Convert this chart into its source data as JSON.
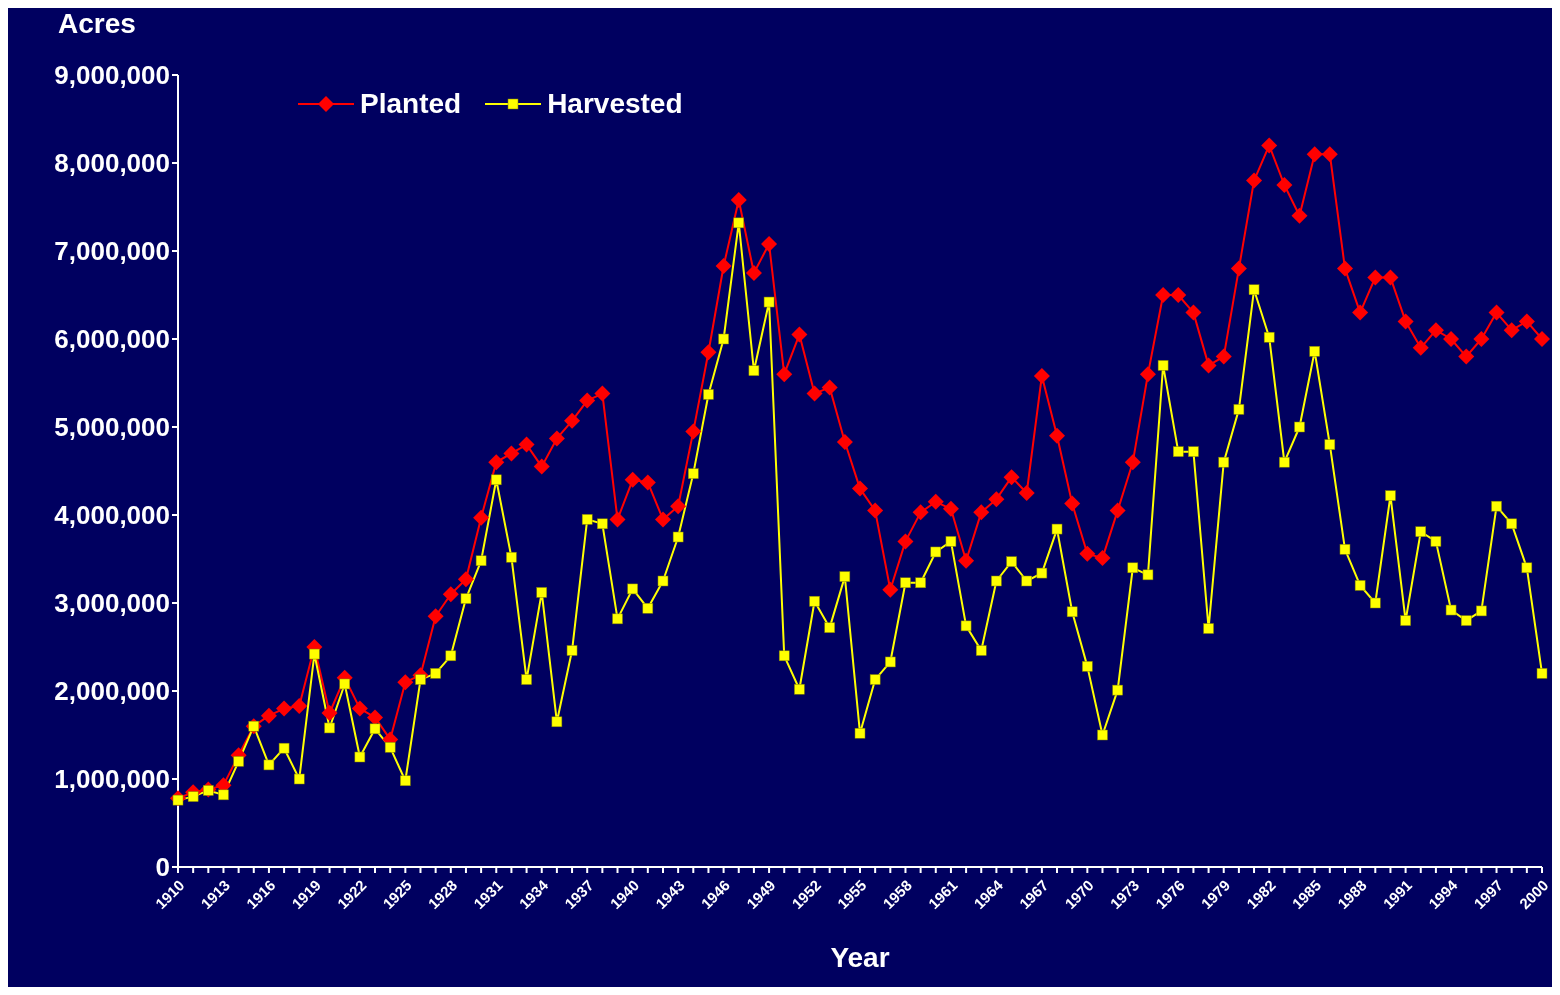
{
  "chart_data": {
    "type": "line",
    "ylabel": "Acres",
    "xlabel": "Year",
    "categories": [
      "1910",
      null,
      null,
      "1913",
      null,
      null,
      "1916",
      null,
      null,
      "1919",
      null,
      null,
      "1922",
      null,
      null,
      "1925",
      null,
      null,
      "1928",
      null,
      null,
      "1931",
      null,
      null,
      "1934",
      null,
      null,
      "1937",
      null,
      null,
      "1940",
      null,
      null,
      "1943",
      null,
      null,
      "1946",
      null,
      null,
      "1949",
      null,
      null,
      "1952",
      null,
      null,
      "1955",
      null,
      null,
      "1958",
      null,
      null,
      "1961",
      null,
      null,
      "1964",
      null,
      null,
      "1967",
      null,
      null,
      "1970",
      null,
      null,
      "1973",
      null,
      null,
      "1976",
      null,
      null,
      "1979",
      null,
      null,
      "1982",
      null,
      null,
      "1985",
      null,
      null,
      "1988",
      null,
      null,
      "1991",
      null,
      null,
      "1994",
      null,
      null,
      "1997",
      null,
      null,
      "2000"
    ],
    "series": [
      {
        "name": "Planted",
        "color": "#ff0000",
        "marker": "diamond",
        "values": [
          780000,
          850000,
          880000,
          930000,
          1270000,
          1600000,
          1720000,
          1800000,
          1830000,
          2500000,
          1750000,
          2150000,
          1800000,
          1700000,
          1450000,
          2100000,
          2180000,
          2850000,
          3100000,
          3270000,
          3970000,
          4600000,
          4700000,
          4800000,
          4550000,
          4870000,
          5070000,
          5300000,
          5380000,
          3950000,
          4400000,
          4370000,
          3950000,
          4100000,
          4950000,
          5850000,
          6830000,
          7580000,
          6750000,
          7080000,
          5600000,
          6050000,
          5380000,
          5450000,
          4830000,
          4300000,
          4050000,
          3150000,
          3700000,
          4030000,
          4150000,
          4070000,
          3480000,
          4030000,
          4180000,
          4430000,
          4250000,
          5580000,
          4900000,
          4130000,
          3560000,
          3510000,
          4050000,
          4600000,
          5600000,
          6500000,
          6500000,
          6300000,
          5700000,
          5800000,
          6800000,
          7800000,
          8200000,
          7750000,
          7400000,
          8100000,
          8100000,
          6800000,
          6300000,
          6700000,
          6700000,
          6200000,
          5900000,
          6100000,
          6000000,
          5800000,
          6000000,
          6300000,
          6100000,
          6200000,
          6000000
        ]
      },
      {
        "name": "Harvested",
        "color": "#ffff00",
        "marker": "square",
        "values": [
          760000,
          800000,
          870000,
          820000,
          1200000,
          1600000,
          1160000,
          1350000,
          1000000,
          2420000,
          1580000,
          2080000,
          1250000,
          1570000,
          1360000,
          980000,
          2130000,
          2200000,
          2400000,
          3050000,
          3480000,
          4400000,
          3520000,
          2130000,
          3120000,
          1650000,
          2460000,
          3950000,
          3900000,
          2820000,
          3160000,
          2940000,
          3250000,
          3750000,
          4470000,
          5370000,
          6000000,
          7320000,
          5640000,
          6420000,
          2400000,
          2020000,
          3020000,
          2720000,
          3300000,
          1520000,
          2130000,
          2330000,
          3230000,
          3230000,
          3580000,
          3700000,
          2740000,
          2460000,
          3250000,
          3470000,
          3250000,
          3340000,
          3840000,
          2900000,
          2280000,
          1500000,
          2010000,
          3400000,
          3320000,
          5700000,
          4720000,
          4720000,
          2710000,
          4600000,
          5200000,
          6560000,
          6020000,
          4600000,
          5000000,
          5860000,
          4800000,
          3610000,
          3200000,
          3000000,
          4220000,
          2800000,
          3810000,
          3700000,
          2920000,
          2800000,
          2910000,
          4100000,
          3900000,
          3400000,
          2200000
        ]
      }
    ],
    "ylim": [
      0,
      9000000
    ],
    "yticks": [
      {
        "value": 0,
        "label": "0"
      },
      {
        "value": 1000000,
        "label": "1,000,000"
      },
      {
        "value": 2000000,
        "label": "2,000,000"
      },
      {
        "value": 3000000,
        "label": "3,000,000"
      },
      {
        "value": 4000000,
        "label": "4,000,000"
      },
      {
        "value": 5000000,
        "label": "5,000,000"
      },
      {
        "value": 6000000,
        "label": "6,000,000"
      },
      {
        "value": 7000000,
        "label": "7,000,000"
      },
      {
        "value": 8000000,
        "label": "8,000,000"
      },
      {
        "value": 9000000,
        "label": "9,000,000"
      }
    ],
    "legend": "top left",
    "line_style": "solid"
  }
}
